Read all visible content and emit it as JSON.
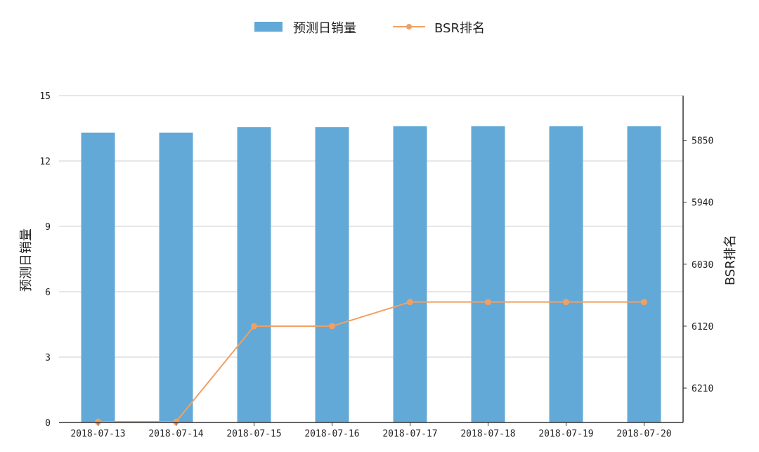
{
  "chart_data": {
    "type": "bar",
    "categories": [
      "2018-07-13",
      "2018-07-14",
      "2018-07-15",
      "2018-07-16",
      "2018-07-17",
      "2018-07-18",
      "2018-07-19",
      "2018-07-20"
    ],
    "series": [
      {
        "name": "预测日销量",
        "type": "bar",
        "axis": "left",
        "color": "#62a9d7",
        "values": [
          13.3,
          13.3,
          13.55,
          13.55,
          13.6,
          13.6,
          13.6,
          13.6
        ]
      },
      {
        "name": "BSR排名",
        "type": "line",
        "axis": "right",
        "color": "#f0a064",
        "values": [
          6259,
          6259,
          6120,
          6120,
          6085,
          6085,
          6085,
          6085
        ]
      }
    ],
    "ylabel": "预测日销量",
    "ylim": [
      0,
      15
    ],
    "yticks": [
      "0",
      "3",
      "6",
      "9",
      "12",
      "15"
    ],
    "y2label": "BSR排名",
    "y2lim": [
      5785,
      6260
    ],
    "y2_inverted": true,
    "y2ticks": [
      "5850",
      "5940",
      "6030",
      "6120",
      "6210"
    ],
    "grid": true,
    "legend": "top-center"
  }
}
